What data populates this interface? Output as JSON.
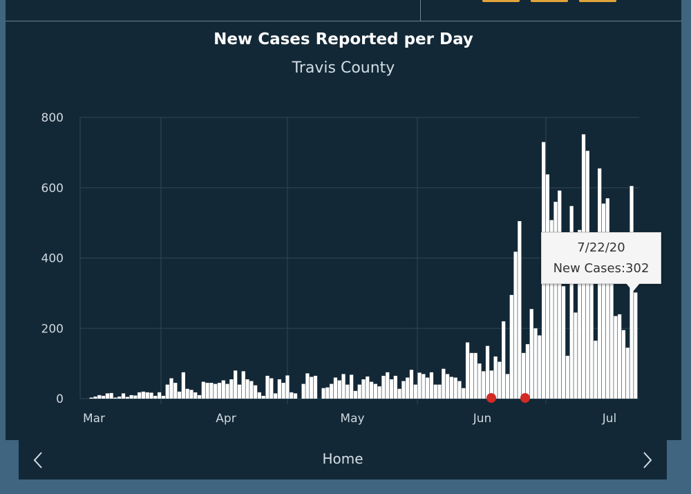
{
  "chart_data": {
    "type": "bar",
    "title": "New Cases Reported per Day",
    "subtitle": "Travis County",
    "xlabel": "",
    "ylabel": "",
    "ylim": [
      0,
      800
    ],
    "yticks": [
      0,
      200,
      400,
      600,
      800
    ],
    "xticks": [
      "Mar",
      "Apr",
      "May",
      "Jun",
      "Jul"
    ],
    "series": [
      {
        "name": "New Cases",
        "values": [
          0,
          0,
          3,
          6,
          10,
          8,
          15,
          16,
          3,
          6,
          15,
          5,
          10,
          9,
          18,
          20,
          18,
          17,
          8,
          18,
          8,
          40,
          58,
          45,
          20,
          75,
          28,
          25,
          18,
          10,
          48,
          45,
          45,
          42,
          45,
          52,
          42,
          55,
          80,
          40,
          78,
          55,
          50,
          38,
          18,
          8,
          65,
          58,
          15,
          55,
          45,
          66,
          18,
          15,
          0,
          42,
          72,
          62,
          65,
          0,
          30,
          32,
          42,
          60,
          52,
          70,
          40,
          68,
          22,
          40,
          55,
          63,
          48,
          42,
          35,
          65,
          75,
          55,
          65,
          28,
          50,
          60,
          82,
          40,
          74,
          70,
          60,
          75,
          40,
          40,
          85,
          70,
          62,
          60,
          50,
          30,
          160,
          130,
          130,
          100,
          78,
          150,
          80,
          120,
          105,
          220,
          70,
          295,
          418,
          505,
          130,
          155,
          255,
          200,
          180,
          730,
          638,
          508,
          560,
          592,
          320,
          122,
          548,
          245,
          480,
          752,
          705,
          365,
          165,
          655,
          555,
          570,
          360,
          235,
          240,
          195,
          145,
          605,
          302
        ]
      }
    ],
    "highlighted_points": [
      "Jun 1",
      "Jun 9"
    ]
  },
  "tooltip": {
    "date": "7/22/20",
    "label": "New Cases:302"
  },
  "nav": {
    "home_label": "Home",
    "prev_icon": "chevron-left-icon",
    "next_icon": "chevron-right-icon"
  },
  "colors": {
    "background": "#132836",
    "bars": "#ffffff",
    "highlight": "#d22b24",
    "grid": "#2e4757",
    "tile": "#e0a43a"
  }
}
